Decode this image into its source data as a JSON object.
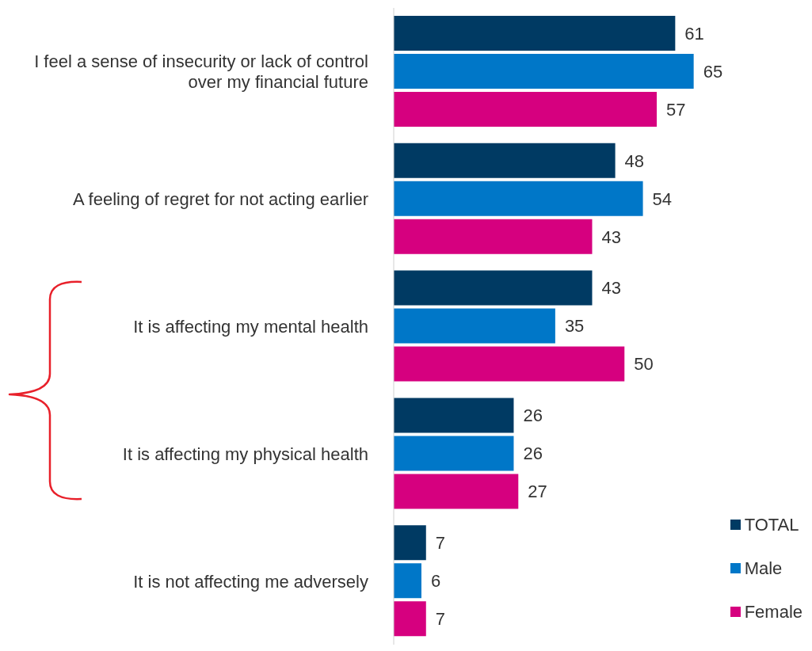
{
  "chart_data": {
    "type": "bar",
    "orientation": "horizontal",
    "categories": [
      "I feel a sense of insecurity or lack of control over my financial future",
      "A feeling of regret for not acting earlier",
      "It is affecting my mental health",
      "It is affecting my physical health",
      "It is not affecting me adversely"
    ],
    "series": [
      {
        "name": "TOTAL",
        "color": "#003a63",
        "values": [
          61,
          48,
          43,
          26,
          7
        ]
      },
      {
        "name": "Male",
        "color": "#0077c8",
        "values": [
          65,
          54,
          35,
          26,
          6
        ]
      },
      {
        "name": "Female",
        "color": "#d6007f",
        "values": [
          57,
          43,
          50,
          27,
          7
        ]
      }
    ],
    "data_labels": true,
    "legend": "bottom right",
    "grid": false
  }
}
